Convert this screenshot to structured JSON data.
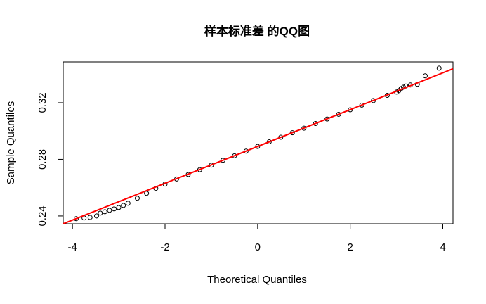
{
  "chart_data": {
    "type": "qq",
    "title": "样本标准差 的QQ图",
    "x_label": "Theoretical Quantiles",
    "y_label": "Sample Quantiles",
    "x": [
      -3.92,
      -3.75,
      -3.62,
      -3.48,
      -3.4,
      -3.3,
      -3.2,
      -3.1,
      -3.0,
      -2.9,
      -2.8,
      -2.6,
      -2.4,
      -2.2,
      -2.0,
      -1.75,
      -1.5,
      -1.25,
      -1.0,
      -0.75,
      -0.5,
      -0.25,
      0,
      0.25,
      0.5,
      0.75,
      1.0,
      1.25,
      1.5,
      1.75,
      2.0,
      2.25,
      2.5,
      2.8,
      3.0,
      3.05,
      3.1,
      3.15,
      3.2,
      3.3,
      3.45,
      3.62,
      3.92
    ],
    "values": [
      0.2381,
      0.2386,
      0.239,
      0.24,
      0.242,
      0.243,
      0.244,
      0.245,
      0.246,
      0.2475,
      0.249,
      0.2525,
      0.256,
      0.2595,
      0.2625,
      0.2661,
      0.2693,
      0.2727,
      0.2759,
      0.2793,
      0.2825,
      0.2858,
      0.2891,
      0.2924,
      0.2956,
      0.2988,
      0.302,
      0.3053,
      0.3085,
      0.3118,
      0.315,
      0.3183,
      0.3215,
      0.3252,
      0.3275,
      0.3285,
      0.33,
      0.331,
      0.3318,
      0.3325,
      0.333,
      0.339,
      0.3444
    ],
    "point_color": "#000000",
    "line": {
      "intercept": 0.2891,
      "slope": 0.013,
      "color": "#ff0000"
    },
    "xlim": [
      -4.2,
      4.22
    ],
    "ylim": [
      0.2345,
      0.3488
    ],
    "xticks": [
      -4,
      -2,
      0,
      2,
      4
    ],
    "yticks": [
      0.24,
      0.28,
      0.32
    ]
  }
}
